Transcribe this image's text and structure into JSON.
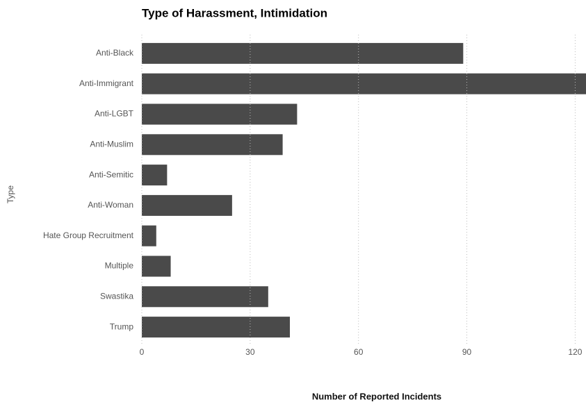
{
  "chart_data": {
    "type": "bar",
    "orientation": "horizontal",
    "title": "Type of Harassment, Intimidation",
    "x_label": "Number of Reported Incidents",
    "y_label": "Type",
    "categories": [
      "Anti-Black",
      "Anti-Immigrant",
      "Anti-LGBT",
      "Anti-Muslim",
      "Anti-Semitic",
      "Anti-Woman",
      "Hate Group Recruitment",
      "Multiple",
      "Swastika",
      "Trump"
    ],
    "values": [
      89,
      125,
      43,
      39,
      7,
      25,
      4,
      8,
      35,
      41
    ],
    "color": "#4a4a4a",
    "xlim": [
      0,
      123
    ],
    "xticks": [
      0,
      30,
      60,
      90,
      120
    ],
    "grid": true
  }
}
